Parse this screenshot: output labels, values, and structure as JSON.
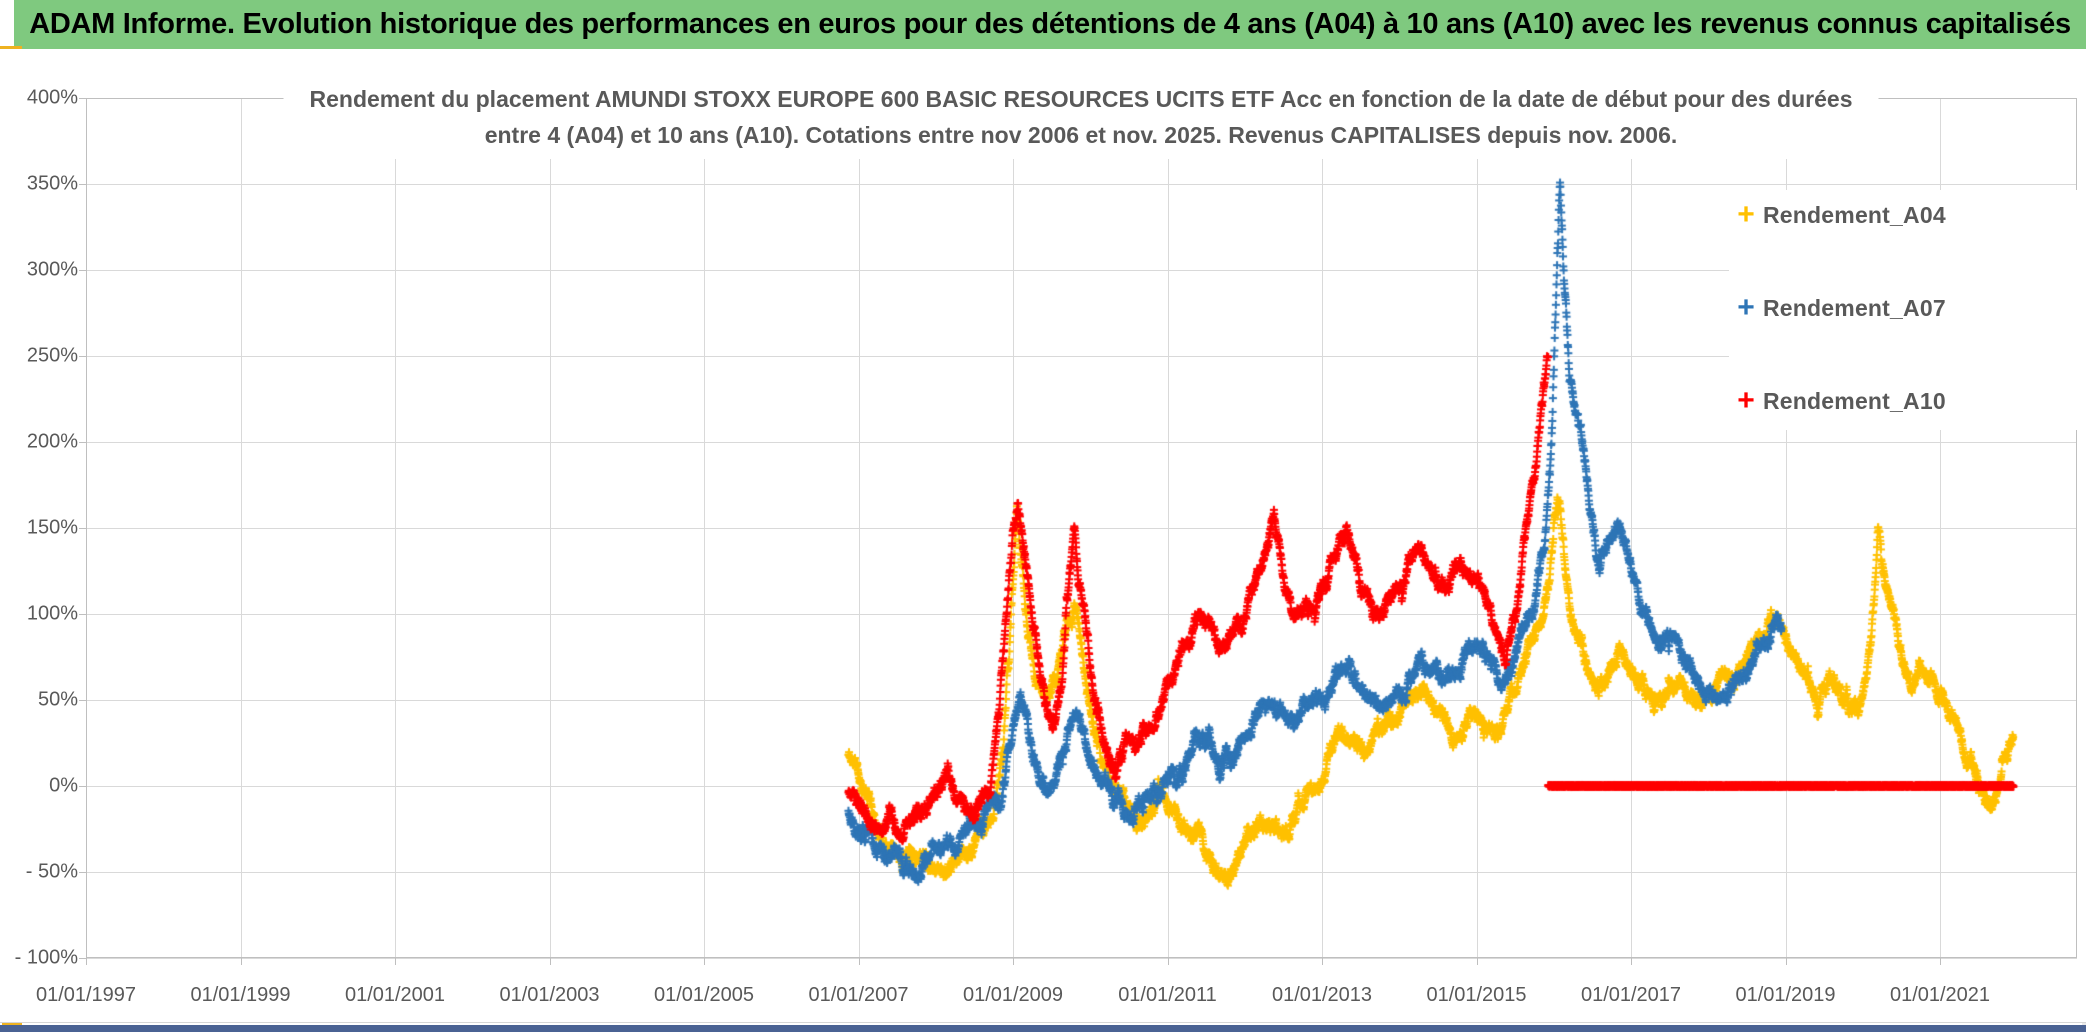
{
  "header": {
    "title": "ADAM Informe. Evolution historique des performances en euros pour des détentions de 4 ans (A04) à 10 ans (A10) avec les revenus connus capitalisés",
    "bg_color": "#7FC97F",
    "text_color": "#000000"
  },
  "frame": {
    "accent_color": "#EEB220",
    "bottom_bar_color": "#4A6293",
    "right_strip_color": "#EAEAEA"
  },
  "chart_data": {
    "type": "scatter",
    "marker": "plus",
    "title_line1": "Rendement du placement AMUNDI STOXX EUROPE 600 BASIC RESOURCES UCITS ETF Acc en fonction de la date de début pour des durées",
    "title_line2": "entre 4 (A04) et 10 ans (A10). Cotations entre nov 2006 et nov. 2025. Revenus CAPITALISES depuis nov. 2006.",
    "grid": true,
    "legend_position": "right",
    "text_color": "#595959",
    "grid_color": "#D9D9D9",
    "axis_color": "#BFBFBF",
    "y_tick_labels": [
      "400%",
      "350%",
      "300%",
      "250%",
      "200%",
      "150%",
      "100%",
      "50%",
      "0%",
      "- 50%",
      "- 100%"
    ],
    "y_tick_values": [
      400,
      350,
      300,
      250,
      200,
      150,
      100,
      50,
      0,
      -50,
      -100
    ],
    "ylim": [
      -100,
      400
    ],
    "x_tick_labels": [
      "01/01/1997",
      "01/01/1999",
      "01/01/2001",
      "01/01/2003",
      "01/01/2005",
      "01/01/2007",
      "01/01/2009",
      "01/01/2011",
      "01/01/2013",
      "01/01/2015",
      "01/01/2017",
      "01/01/2019",
      "01/01/2021"
    ],
    "x_tick_years": [
      1997,
      1999,
      2001,
      2003,
      2005,
      2007,
      2009,
      2011,
      2013,
      2015,
      2017,
      2019,
      2021
    ],
    "xlim_years": [
      1997.0,
      2022.8
    ],
    "legend": [
      {
        "label": "Rendement_A04",
        "color": "#FFC000"
      },
      {
        "label": "Rendement_A07",
        "color": "#2E75B6"
      },
      {
        "label": "Rendement_A10",
        "color": "#FF0000"
      }
    ],
    "series": [
      {
        "name": "Rendement_A04",
        "color": "#FFC000",
        "points_per_year": 260,
        "jitter_pct": 8,
        "seed": 11,
        "backbone": [
          [
            2006.87,
            18
          ],
          [
            2007.0,
            8
          ],
          [
            2007.1,
            -6
          ],
          [
            2007.25,
            -25
          ],
          [
            2007.4,
            -35
          ],
          [
            2007.55,
            -38
          ],
          [
            2007.7,
            -30
          ],
          [
            2007.85,
            -40
          ],
          [
            2008.0,
            -45
          ],
          [
            2008.15,
            -48
          ],
          [
            2008.3,
            -43
          ],
          [
            2008.45,
            -38
          ],
          [
            2008.6,
            -30
          ],
          [
            2008.75,
            -18
          ],
          [
            2008.88,
            30
          ],
          [
            2008.97,
            100
          ],
          [
            2009.05,
            158
          ],
          [
            2009.12,
            120
          ],
          [
            2009.2,
            85
          ],
          [
            2009.3,
            60
          ],
          [
            2009.45,
            50
          ],
          [
            2009.6,
            70
          ],
          [
            2009.7,
            95
          ],
          [
            2009.8,
            108
          ],
          [
            2009.9,
            80
          ],
          [
            2010.0,
            45
          ],
          [
            2010.15,
            15
          ],
          [
            2010.3,
            0
          ],
          [
            2010.45,
            -10
          ],
          [
            2010.6,
            -20
          ],
          [
            2010.75,
            -15
          ],
          [
            2010.9,
            -8
          ],
          [
            2011.05,
            -12
          ],
          [
            2011.2,
            -22
          ],
          [
            2011.35,
            -28
          ],
          [
            2011.5,
            -38
          ],
          [
            2011.65,
            -50
          ],
          [
            2011.78,
            -57
          ],
          [
            2011.9,
            -45
          ],
          [
            2012.05,
            -30
          ],
          [
            2012.2,
            -20
          ],
          [
            2012.35,
            -22
          ],
          [
            2012.5,
            -28
          ],
          [
            2012.65,
            -18
          ],
          [
            2012.8,
            -10
          ],
          [
            2012.95,
            -2
          ],
          [
            2013.1,
            15
          ],
          [
            2013.25,
            35
          ],
          [
            2013.4,
            28
          ],
          [
            2013.55,
            20
          ],
          [
            2013.7,
            28
          ],
          [
            2013.85,
            38
          ],
          [
            2014.0,
            42
          ],
          [
            2014.15,
            48
          ],
          [
            2014.3,
            55
          ],
          [
            2014.45,
            45
          ],
          [
            2014.6,
            35
          ],
          [
            2014.75,
            32
          ],
          [
            2014.9,
            40
          ],
          [
            2015.05,
            35
          ],
          [
            2015.2,
            32
          ],
          [
            2015.35,
            42
          ],
          [
            2015.5,
            55
          ],
          [
            2015.65,
            75
          ],
          [
            2015.8,
            95
          ],
          [
            2015.95,
            125
          ],
          [
            2016.05,
            165
          ],
          [
            2016.15,
            125
          ],
          [
            2016.25,
            95
          ],
          [
            2016.4,
            70
          ],
          [
            2016.55,
            55
          ],
          [
            2016.7,
            62
          ],
          [
            2016.85,
            80
          ],
          [
            2017.0,
            70
          ],
          [
            2017.15,
            55
          ],
          [
            2017.3,
            45
          ],
          [
            2017.45,
            52
          ],
          [
            2017.6,
            62
          ],
          [
            2017.75,
            58
          ],
          [
            2017.9,
            48
          ],
          [
            2018.05,
            55
          ],
          [
            2018.2,
            62
          ],
          [
            2018.35,
            68
          ],
          [
            2018.5,
            75
          ],
          [
            2018.65,
            82
          ],
          [
            2018.8,
            95
          ],
          [
            2018.95,
            100
          ],
          [
            2019.1,
            80
          ],
          [
            2019.25,
            65
          ],
          [
            2019.4,
            50
          ],
          [
            2019.55,
            60
          ],
          [
            2019.7,
            55
          ],
          [
            2019.85,
            45
          ],
          [
            2020.0,
            52
          ],
          [
            2020.1,
            75
          ],
          [
            2020.2,
            148
          ],
          [
            2020.3,
            125
          ],
          [
            2020.4,
            100
          ],
          [
            2020.5,
            78
          ],
          [
            2020.6,
            60
          ],
          [
            2020.75,
            68
          ],
          [
            2020.9,
            62
          ],
          [
            2021.05,
            50
          ],
          [
            2021.2,
            35
          ],
          [
            2021.35,
            18
          ],
          [
            2021.5,
            2
          ],
          [
            2021.62,
            -10
          ],
          [
            2021.72,
            -12
          ],
          [
            2021.8,
            2
          ],
          [
            2021.88,
            18
          ],
          [
            2021.95,
            25
          ]
        ]
      },
      {
        "name": "Rendement_A07",
        "color": "#2E75B6",
        "points_per_year": 260,
        "jitter_pct": 8,
        "seed": 22,
        "backbone": [
          [
            2006.87,
            -15
          ],
          [
            2007.0,
            -22
          ],
          [
            2007.15,
            -28
          ],
          [
            2007.3,
            -35
          ],
          [
            2007.45,
            -40
          ],
          [
            2007.6,
            -44
          ],
          [
            2007.75,
            -48
          ],
          [
            2007.9,
            -44
          ],
          [
            2008.05,
            -38
          ],
          [
            2008.2,
            -34
          ],
          [
            2008.35,
            -30
          ],
          [
            2008.5,
            -25
          ],
          [
            2008.65,
            -18
          ],
          [
            2008.8,
            -8
          ],
          [
            2008.9,
            12
          ],
          [
            2009.0,
            35
          ],
          [
            2009.08,
            52
          ],
          [
            2009.18,
            38
          ],
          [
            2009.3,
            12
          ],
          [
            2009.42,
            -5
          ],
          [
            2009.55,
            0
          ],
          [
            2009.65,
            22
          ],
          [
            2009.78,
            40
          ],
          [
            2009.9,
            32
          ],
          [
            2010.05,
            12
          ],
          [
            2010.2,
            0
          ],
          [
            2010.35,
            -10
          ],
          [
            2010.5,
            -18
          ],
          [
            2010.65,
            -10
          ],
          [
            2010.8,
            -4
          ],
          [
            2010.95,
            2
          ],
          [
            2011.1,
            8
          ],
          [
            2011.25,
            15
          ],
          [
            2011.4,
            22
          ],
          [
            2011.55,
            25
          ],
          [
            2011.7,
            15
          ],
          [
            2011.85,
            18
          ],
          [
            2012.0,
            28
          ],
          [
            2012.15,
            38
          ],
          [
            2012.3,
            52
          ],
          [
            2012.45,
            42
          ],
          [
            2012.6,
            35
          ],
          [
            2012.75,
            42
          ],
          [
            2012.9,
            50
          ],
          [
            2013.05,
            55
          ],
          [
            2013.2,
            65
          ],
          [
            2013.35,
            72
          ],
          [
            2013.5,
            58
          ],
          [
            2013.65,
            48
          ],
          [
            2013.8,
            45
          ],
          [
            2013.95,
            52
          ],
          [
            2014.1,
            60
          ],
          [
            2014.25,
            72
          ],
          [
            2014.4,
            68
          ],
          [
            2014.55,
            60
          ],
          [
            2014.7,
            68
          ],
          [
            2014.85,
            78
          ],
          [
            2015.0,
            82
          ],
          [
            2015.15,
            72
          ],
          [
            2015.3,
            62
          ],
          [
            2015.45,
            72
          ],
          [
            2015.6,
            88
          ],
          [
            2015.75,
            108
          ],
          [
            2015.88,
            140
          ],
          [
            2015.97,
            200
          ],
          [
            2016.04,
            300
          ],
          [
            2016.08,
            352
          ],
          [
            2016.13,
            300
          ],
          [
            2016.2,
            240
          ],
          [
            2016.3,
            210
          ],
          [
            2016.4,
            188
          ],
          [
            2016.5,
            155
          ],
          [
            2016.6,
            122
          ],
          [
            2016.7,
            140
          ],
          [
            2016.8,
            152
          ],
          [
            2016.9,
            145
          ],
          [
            2017.0,
            128
          ],
          [
            2017.1,
            112
          ],
          [
            2017.2,
            100
          ],
          [
            2017.35,
            80
          ],
          [
            2017.5,
            92
          ],
          [
            2017.65,
            82
          ],
          [
            2017.8,
            68
          ],
          [
            2017.95,
            58
          ],
          [
            2018.1,
            50
          ],
          [
            2018.25,
            56
          ],
          [
            2018.4,
            62
          ],
          [
            2018.55,
            70
          ],
          [
            2018.7,
            85
          ],
          [
            2018.85,
            98
          ],
          [
            2018.95,
            95
          ]
        ]
      },
      {
        "name": "Rendement_A10",
        "color": "#FF0000",
        "points_per_year": 260,
        "jitter_pct": 8,
        "seed": 33,
        "backbone": [
          [
            2006.87,
            -4
          ],
          [
            2007.0,
            -10
          ],
          [
            2007.12,
            -20
          ],
          [
            2007.25,
            -27
          ],
          [
            2007.4,
            -22
          ],
          [
            2007.55,
            -28
          ],
          [
            2007.7,
            -25
          ],
          [
            2007.85,
            -16
          ],
          [
            2008.0,
            -2
          ],
          [
            2008.1,
            5
          ],
          [
            2008.25,
            -8
          ],
          [
            2008.4,
            -16
          ],
          [
            2008.55,
            -12
          ],
          [
            2008.7,
            0
          ],
          [
            2008.82,
            40
          ],
          [
            2008.92,
            100
          ],
          [
            2009.0,
            150
          ],
          [
            2009.06,
            166
          ],
          [
            2009.14,
            135
          ],
          [
            2009.25,
            100
          ],
          [
            2009.35,
            70
          ],
          [
            2009.45,
            42
          ],
          [
            2009.55,
            38
          ],
          [
            2009.65,
            70
          ],
          [
            2009.73,
            120
          ],
          [
            2009.8,
            145
          ],
          [
            2009.88,
            115
          ],
          [
            2009.96,
            85
          ],
          [
            2010.05,
            48
          ],
          [
            2010.15,
            25
          ],
          [
            2010.3,
            15
          ],
          [
            2010.45,
            24
          ],
          [
            2010.6,
            18
          ],
          [
            2010.75,
            30
          ],
          [
            2010.9,
            45
          ],
          [
            2011.05,
            62
          ],
          [
            2011.2,
            80
          ],
          [
            2011.35,
            95
          ],
          [
            2011.5,
            100
          ],
          [
            2011.65,
            82
          ],
          [
            2011.8,
            88
          ],
          [
            2011.95,
            100
          ],
          [
            2012.1,
            112
          ],
          [
            2012.25,
            132
          ],
          [
            2012.38,
            155
          ],
          [
            2012.5,
            122
          ],
          [
            2012.62,
            96
          ],
          [
            2012.75,
            102
          ],
          [
            2012.9,
            108
          ],
          [
            2013.05,
            120
          ],
          [
            2013.2,
            138
          ],
          [
            2013.32,
            150
          ],
          [
            2013.45,
            130
          ],
          [
            2013.6,
            112
          ],
          [
            2013.75,
            98
          ],
          [
            2013.9,
            108
          ],
          [
            2014.05,
            122
          ],
          [
            2014.2,
            140
          ],
          [
            2014.35,
            130
          ],
          [
            2014.5,
            115
          ],
          [
            2014.65,
            118
          ],
          [
            2014.8,
            130
          ],
          [
            2014.95,
            124
          ],
          [
            2015.1,
            110
          ],
          [
            2015.25,
            92
          ],
          [
            2015.38,
            72
          ],
          [
            2015.5,
            95
          ],
          [
            2015.6,
            130
          ],
          [
            2015.7,
            165
          ],
          [
            2015.8,
            205
          ],
          [
            2015.88,
            235
          ],
          [
            2015.93,
            252
          ]
        ],
        "zero_segment": [
          2015.93,
          2021.95
        ]
      }
    ]
  }
}
